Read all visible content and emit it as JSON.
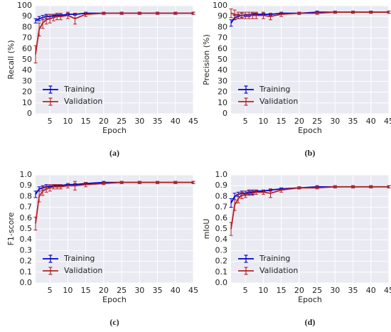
{
  "chart_data": [
    {
      "type": "line",
      "ylabel": "Recall (%)",
      "xlabel": "Epoch",
      "caption": "(a)",
      "x": [
        1,
        2,
        3,
        4,
        5,
        6,
        7,
        8,
        10,
        12,
        15,
        20,
        25,
        30,
        35,
        40,
        45
      ],
      "xlim": [
        1,
        45
      ],
      "xticks": [
        5,
        10,
        15,
        20,
        25,
        30,
        35,
        40,
        45
      ],
      "ylim": [
        0,
        100
      ],
      "yticks": [
        0,
        10,
        20,
        30,
        40,
        50,
        60,
        70,
        80,
        90,
        100
      ],
      "grid": true,
      "legend": "lower left",
      "series": [
        {
          "name": "Training",
          "color": "#0000cc",
          "values": [
            86,
            88,
            89,
            90,
            90,
            91,
            91,
            91,
            92,
            92,
            93,
            93,
            93,
            93,
            93,
            93,
            93
          ],
          "errors": [
            2,
            2,
            2,
            2,
            2,
            1,
            1,
            1,
            1,
            1,
            1,
            1,
            1,
            1,
            1,
            1,
            1
          ]
        },
        {
          "name": "Validation",
          "color": "#b22222",
          "values": [
            55,
            78,
            84,
            87,
            88,
            89,
            90,
            90,
            91,
            88,
            92,
            93,
            93,
            93,
            93,
            93,
            93
          ],
          "errors": [
            8,
            6,
            5,
            4,
            4,
            3,
            3,
            3,
            3,
            5,
            2,
            1,
            1,
            1,
            1,
            1,
            1
          ]
        }
      ]
    },
    {
      "type": "line",
      "ylabel": "Precision (%)",
      "xlabel": "Epoch",
      "caption": "(b)",
      "x": [
        1,
        2,
        3,
        4,
        5,
        6,
        7,
        8,
        10,
        12,
        15,
        20,
        25,
        30,
        35,
        40,
        45
      ],
      "xlim": [
        1,
        45
      ],
      "xticks": [
        5,
        10,
        15,
        20,
        25,
        30,
        35,
        40,
        45
      ],
      "ylim": [
        0,
        100
      ],
      "yticks": [
        0,
        10,
        20,
        30,
        40,
        50,
        60,
        70,
        80,
        90,
        100
      ],
      "grid": true,
      "legend": "lower left",
      "series": [
        {
          "name": "Training",
          "color": "#0000cc",
          "values": [
            84,
            89,
            90,
            91,
            91,
            91,
            92,
            92,
            92,
            92,
            93,
            93,
            94,
            94,
            94,
            94,
            94
          ],
          "errors": [
            3,
            2,
            2,
            2,
            1,
            1,
            1,
            1,
            1,
            1,
            1,
            1,
            1,
            1,
            1,
            1,
            1
          ]
        },
        {
          "name": "Validation",
          "color": "#b22222",
          "values": [
            93,
            92,
            91,
            91,
            91,
            91,
            91,
            91,
            91,
            90,
            92,
            93,
            93,
            94,
            94,
            94,
            94
          ],
          "errors": [
            4,
            4,
            3,
            3,
            3,
            3,
            3,
            3,
            3,
            3,
            2,
            1,
            1,
            1,
            1,
            1,
            1
          ]
        }
      ]
    },
    {
      "type": "line",
      "ylabel": "F1-score",
      "xlabel": "Epoch",
      "caption": "(c)",
      "x": [
        1,
        2,
        3,
        4,
        5,
        6,
        7,
        8,
        10,
        12,
        15,
        20,
        25,
        30,
        35,
        40,
        45
      ],
      "xlim": [
        1,
        45
      ],
      "xticks": [
        5,
        10,
        15,
        20,
        25,
        30,
        35,
        40,
        45
      ],
      "ylim": [
        0,
        1
      ],
      "yticks": [
        {
          "value": 0,
          "label": "0.0"
        },
        0.1,
        0.2,
        0.3,
        0.4,
        0.5,
        0.6,
        0.7,
        0.8,
        0.9,
        {
          "value": 1,
          "label": "1.0"
        }
      ],
      "grid": true,
      "legend": "lower left",
      "series": [
        {
          "name": "Training",
          "color": "#0000cc",
          "values": [
            0.82,
            0.87,
            0.88,
            0.89,
            0.89,
            0.9,
            0.9,
            0.9,
            0.91,
            0.91,
            0.92,
            0.93,
            0.93,
            0.93,
            0.93,
            0.93,
            0.93
          ],
          "errors": [
            0.03,
            0.02,
            0.02,
            0.02,
            0.01,
            0.01,
            0.01,
            0.01,
            0.01,
            0.01,
            0.01,
            0.01,
            0.01,
            0.01,
            0.01,
            0.01,
            0.01
          ]
        },
        {
          "name": "Validation",
          "color": "#b22222",
          "values": [
            0.55,
            0.8,
            0.85,
            0.87,
            0.88,
            0.89,
            0.89,
            0.89,
            0.9,
            0.9,
            0.91,
            0.92,
            0.93,
            0.93,
            0.93,
            0.93,
            0.93
          ],
          "errors": [
            0.06,
            0.05,
            0.04,
            0.03,
            0.03,
            0.02,
            0.02,
            0.02,
            0.02,
            0.04,
            0.02,
            0.01,
            0.01,
            0.01,
            0.01,
            0.01,
            0.01
          ]
        }
      ]
    },
    {
      "type": "line",
      "ylabel": "mIoU",
      "xlabel": "Epoch",
      "caption": "(d)",
      "x": [
        1,
        2,
        3,
        4,
        5,
        6,
        7,
        8,
        10,
        12,
        15,
        20,
        25,
        30,
        35,
        40,
        45
      ],
      "xlim": [
        1,
        45
      ],
      "xticks": [
        5,
        10,
        15,
        20,
        25,
        30,
        35,
        40,
        45
      ],
      "ylim": [
        0,
        1
      ],
      "yticks": [
        {
          "value": 0,
          "label": "0.0"
        },
        0.1,
        0.2,
        0.3,
        0.4,
        0.5,
        0.6,
        0.7,
        0.8,
        0.9,
        {
          "value": 1,
          "label": "1.0"
        }
      ],
      "grid": true,
      "legend": "lower left",
      "series": [
        {
          "name": "Training",
          "color": "#0000cc",
          "values": [
            0.74,
            0.8,
            0.82,
            0.83,
            0.83,
            0.84,
            0.84,
            0.85,
            0.85,
            0.86,
            0.87,
            0.88,
            0.89,
            0.89,
            0.89,
            0.89,
            0.89
          ],
          "errors": [
            0.04,
            0.03,
            0.02,
            0.02,
            0.02,
            0.02,
            0.02,
            0.01,
            0.01,
            0.01,
            0.01,
            0.01,
            0.01,
            0.01,
            0.01,
            0.01,
            0.01
          ]
        },
        {
          "name": "Validation",
          "color": "#b22222",
          "values": [
            0.5,
            0.72,
            0.78,
            0.81,
            0.82,
            0.83,
            0.83,
            0.84,
            0.84,
            0.83,
            0.86,
            0.88,
            0.88,
            0.89,
            0.89,
            0.89,
            0.89
          ],
          "errors": [
            0.06,
            0.05,
            0.04,
            0.03,
            0.03,
            0.02,
            0.02,
            0.02,
            0.02,
            0.04,
            0.02,
            0.01,
            0.01,
            0.01,
            0.01,
            0.01,
            0.01
          ]
        }
      ]
    }
  ]
}
